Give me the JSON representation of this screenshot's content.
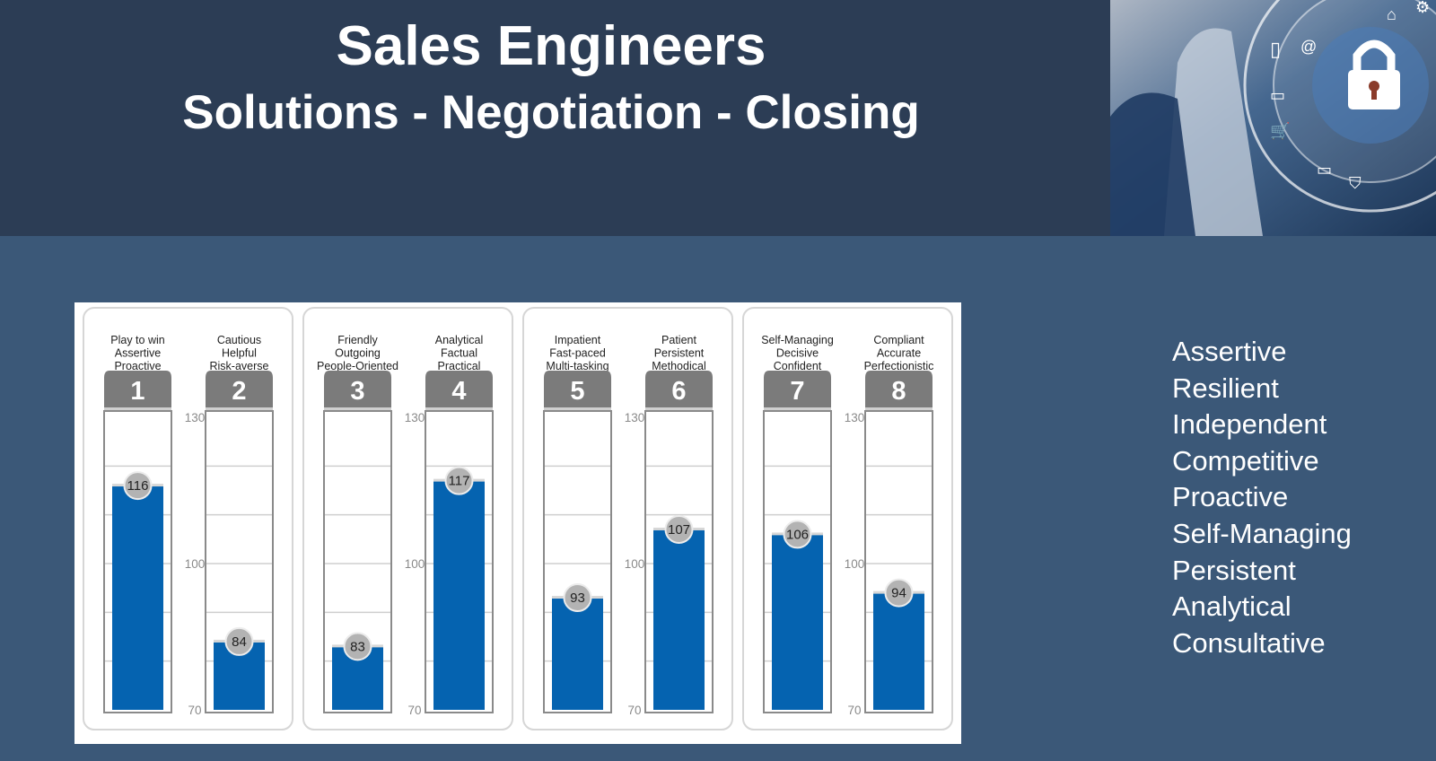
{
  "header": {
    "title": "Sales Engineers",
    "subtitle": "Solutions - Negotiation - Closing"
  },
  "traits": [
    "Assertive",
    "Resilient",
    "Independent",
    "Competitive",
    "Proactive",
    "Self-Managing",
    "Persistent",
    "Analytical",
    "Consultative"
  ],
  "colors": {
    "header_bg": "#2c3d55",
    "page_bg": "#3b5878",
    "bar": "#0563b0",
    "bar_header": "#7b7b7b",
    "badge": "#b3b3b3"
  },
  "chart_data": {
    "type": "bar",
    "categories": [
      "1",
      "2",
      "3",
      "4",
      "5",
      "6",
      "7",
      "8"
    ],
    "descriptors": [
      [
        "Play to win",
        "Assertive",
        "Proactive"
      ],
      [
        "Cautious",
        "Helpful",
        "Risk-averse"
      ],
      [
        "Friendly",
        "Outgoing",
        "People-Oriented"
      ],
      [
        "Analytical",
        "Factual",
        "Practical"
      ],
      [
        "Impatient",
        "Fast-paced",
        "Multi-tasking"
      ],
      [
        "Patient",
        "Persistent",
        "Methodical"
      ],
      [
        "Self-Managing",
        "Decisive",
        "Confident"
      ],
      [
        "Compliant",
        "Accurate",
        "Perfectionistic"
      ]
    ],
    "values": [
      116,
      84,
      83,
      117,
      93,
      107,
      106,
      94
    ],
    "ylim": [
      70,
      130
    ],
    "ytick_labels": [
      "130",
      "100",
      "70"
    ],
    "groups": [
      [
        "1",
        "2"
      ],
      [
        "3",
        "4"
      ],
      [
        "5",
        "6"
      ],
      [
        "7",
        "8"
      ]
    ],
    "grid": true
  }
}
